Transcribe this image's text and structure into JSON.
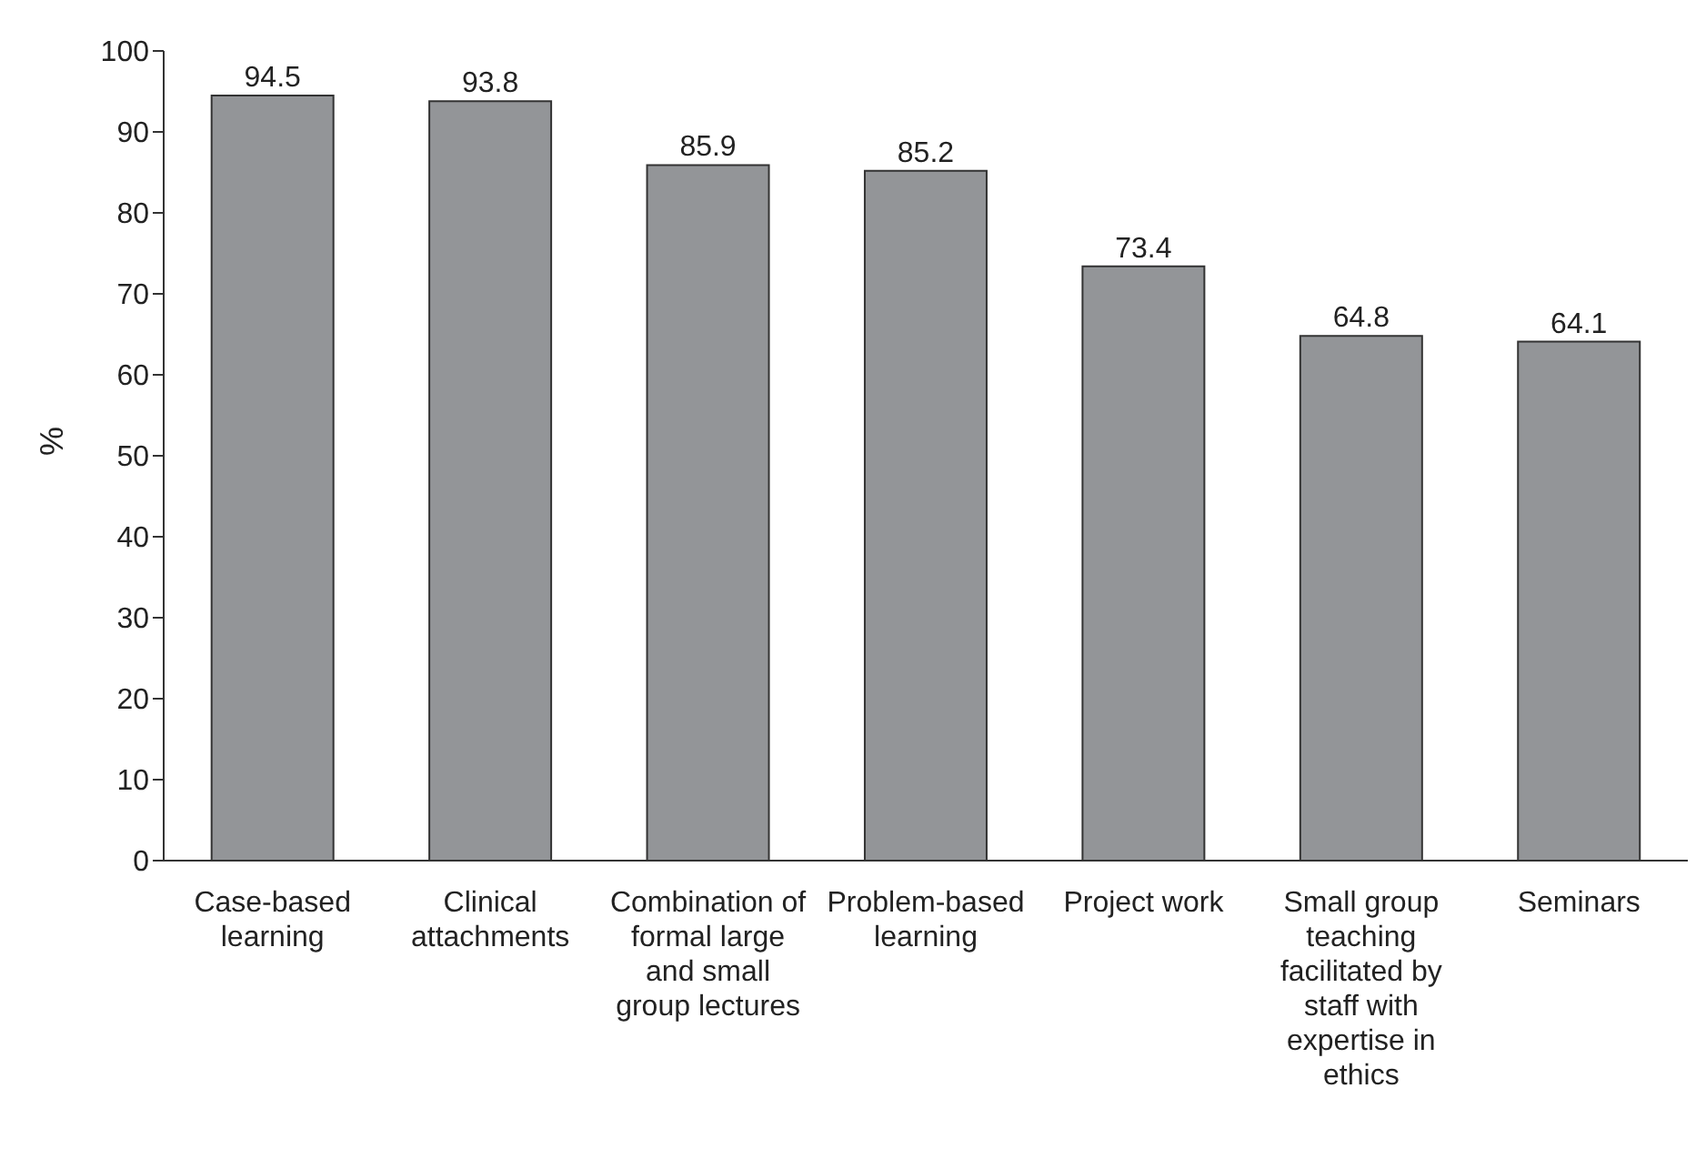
{
  "chart_data": {
    "type": "bar",
    "ylabel": "%",
    "categories": [
      "Case-based learning",
      "Clinical attachments",
      "Combination of formal large and small group lectures",
      "Problem-based learning",
      "Project work",
      "Small group teaching facilitated by staff with expertise in ethics",
      "Seminars"
    ],
    "values": [
      94.5,
      93.8,
      85.9,
      85.2,
      73.4,
      64.8,
      64.1
    ],
    "color": "#939598",
    "ylim": [
      0,
      100
    ],
    "yticks": [
      0,
      10,
      20,
      30,
      40,
      50,
      60,
      70,
      80,
      90,
      100
    ],
    "data_labels": true
  }
}
